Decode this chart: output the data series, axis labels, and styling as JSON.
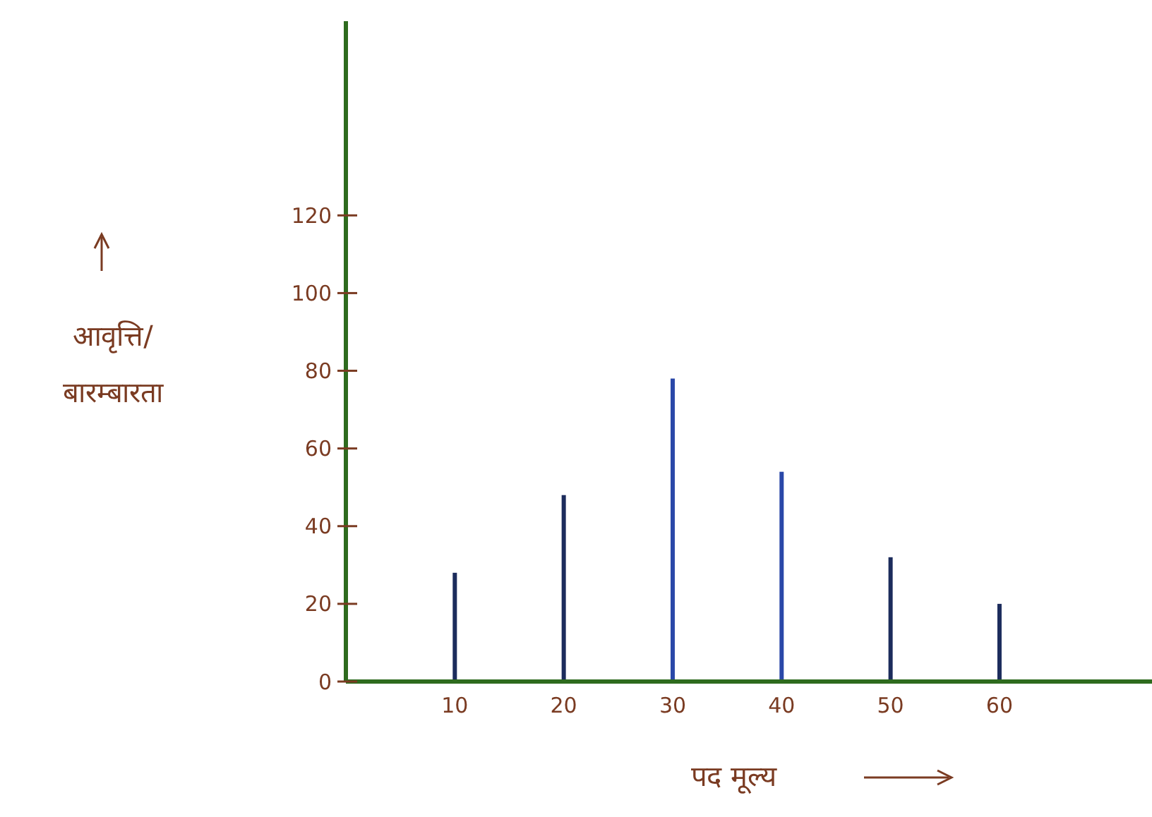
{
  "chart_data": {
    "type": "bar",
    "xlabel": "पद मूल्य",
    "ylabel": "आवृत्ति/ बारम्बारता",
    "x": [
      10,
      20,
      30,
      40,
      50,
      60
    ],
    "values": [
      28,
      48,
      78,
      54,
      32,
      20
    ],
    "colors": [
      "#1c2c5c",
      "#1c2c5c",
      "#2a48a8",
      "#2a48a8",
      "#1c2c5c",
      "#1c2c5c"
    ],
    "xlim": [
      0,
      74
    ],
    "ylim": [
      0,
      170
    ],
    "xticks": [
      10,
      20,
      30,
      40,
      50,
      60
    ],
    "yticks": [
      0,
      20,
      40,
      60,
      80,
      100,
      120
    ],
    "grid": false
  }
}
